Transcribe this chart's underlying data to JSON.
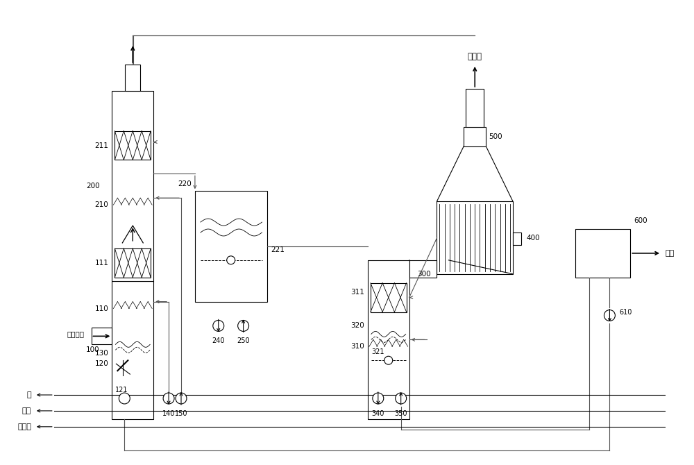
{
  "bg_color": "#ffffff",
  "lw": 0.8,
  "labels": {
    "clean_gas": "净烟气",
    "high_sulfur": "高硫烟气",
    "ammonia": "氨",
    "air": "空气",
    "process_water": "工艺水",
    "ammonium_sulfate": "硫铵",
    "n200": "200",
    "n100": "100",
    "n211": "211",
    "n210": "210",
    "n111": "111",
    "n110": "110",
    "n130": "130",
    "n120": "120",
    "n121": "121",
    "n140": "140",
    "n150": "150",
    "n220": "220",
    "n221": "221",
    "n240": "240",
    "n250": "250",
    "n300": "300",
    "n311": "311",
    "n310": "310",
    "n320": "320",
    "n321": "321",
    "n340": "340",
    "n350": "350",
    "n400": "400",
    "n500": "500",
    "n600": "600",
    "n610": "610"
  }
}
